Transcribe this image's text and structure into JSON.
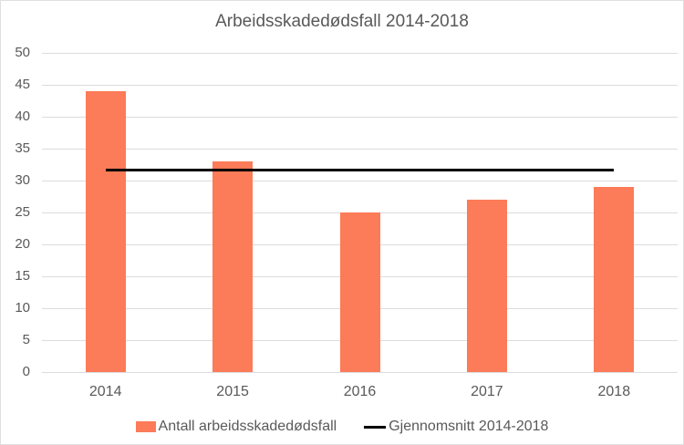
{
  "chart_data": {
    "type": "bar",
    "title": "Arbeidsskadedødsfall 2014-2018",
    "categories": [
      "2014",
      "2015",
      "2016",
      "2017",
      "2018"
    ],
    "series": [
      {
        "name": "Antall arbeidsskadedødsfall",
        "type": "bar",
        "values": [
          44,
          33,
          25,
          27,
          29
        ],
        "color": "#FC7B58"
      },
      {
        "name": "Gjennomsnitt 2014-2018",
        "type": "line",
        "values": [
          31.6,
          31.6,
          31.6,
          31.6,
          31.6
        ],
        "color": "#000000"
      }
    ],
    "ylim": [
      0,
      50
    ],
    "yticks": [
      0,
      5,
      10,
      15,
      20,
      25,
      30,
      35,
      40,
      45,
      50
    ],
    "grid": true,
    "legend_position": "bottom",
    "text_color": "#595959",
    "gridline_color": "#DCDCDC"
  }
}
